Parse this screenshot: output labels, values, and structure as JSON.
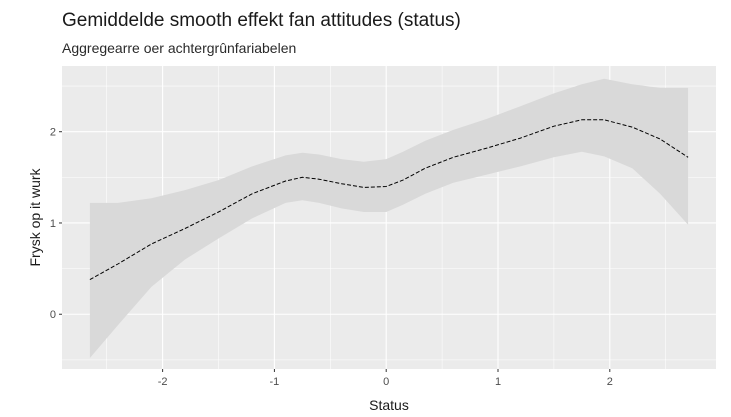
{
  "chart_data": {
    "type": "line",
    "title": "Gemiddelde smooth effekt fan attitudes (status)",
    "subtitle": "Aggregearre oer achtergrûnfariabelen",
    "xlabel": "Status",
    "ylabel": "Frysk op it wurk",
    "xlim": [
      -2.9,
      2.95
    ],
    "ylim": [
      -0.6,
      2.72
    ],
    "x_ticks": [
      -2,
      -1,
      0,
      1,
      2
    ],
    "y_ticks": [
      0,
      1,
      2
    ],
    "grid": true,
    "series": [
      {
        "x": [
          -2.65,
          -2.4,
          -2.1,
          -1.8,
          -1.5,
          -1.2,
          -0.9,
          -0.75,
          -0.6,
          -0.4,
          -0.2,
          0.0,
          0.15,
          0.35,
          0.6,
          0.9,
          1.2,
          1.5,
          1.75,
          1.95,
          2.2,
          2.45,
          2.7
        ],
        "y": [
          0.38,
          0.55,
          0.77,
          0.94,
          1.12,
          1.32,
          1.46,
          1.5,
          1.48,
          1.43,
          1.39,
          1.4,
          1.47,
          1.6,
          1.72,
          1.82,
          1.93,
          2.06,
          2.13,
          2.13,
          2.05,
          1.92,
          1.72
        ],
        "lower": [
          -0.48,
          -0.12,
          0.3,
          0.6,
          0.83,
          1.05,
          1.22,
          1.25,
          1.22,
          1.16,
          1.12,
          1.12,
          1.2,
          1.32,
          1.44,
          1.53,
          1.62,
          1.72,
          1.78,
          1.73,
          1.6,
          1.32,
          0.98
        ],
        "upper": [
          1.22,
          1.22,
          1.27,
          1.36,
          1.47,
          1.62,
          1.74,
          1.77,
          1.75,
          1.7,
          1.67,
          1.7,
          1.78,
          1.9,
          2.02,
          2.14,
          2.28,
          2.42,
          2.52,
          2.58,
          2.52,
          2.48,
          2.48
        ]
      }
    ]
  }
}
